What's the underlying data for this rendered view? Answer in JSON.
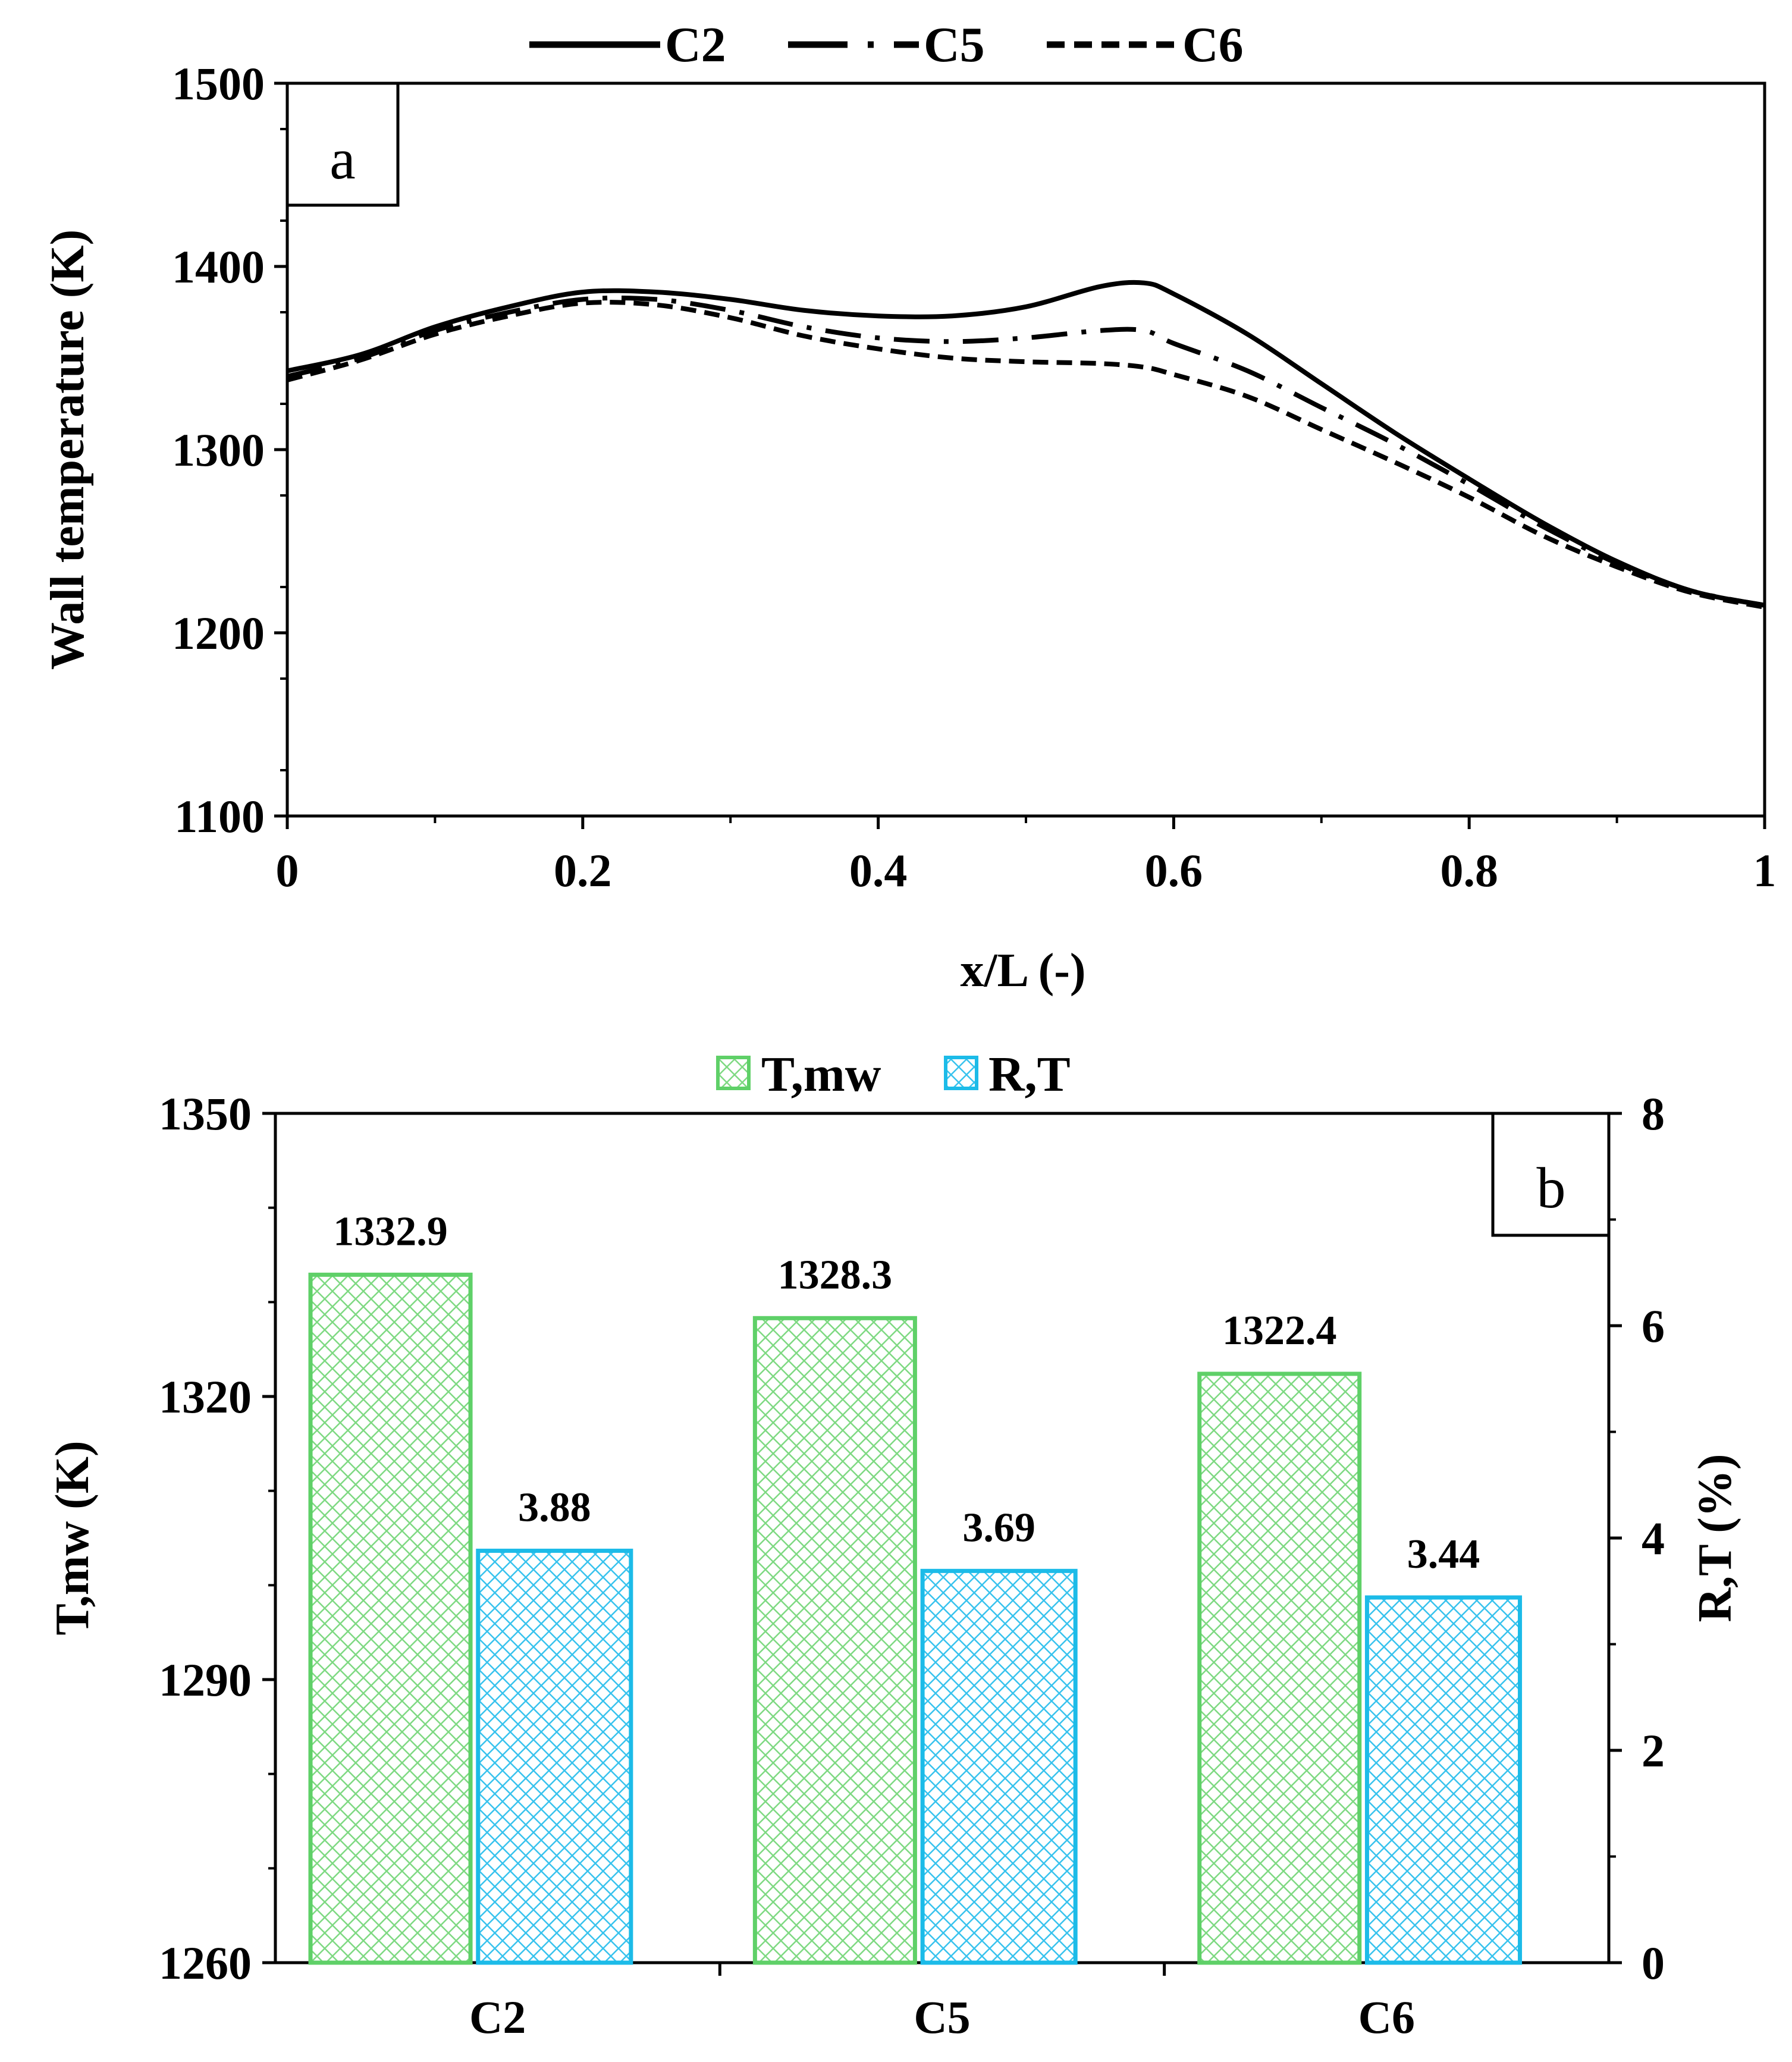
{
  "chart_data": [
    {
      "type": "line",
      "panel_label": "a",
      "xlabel": "x/L (-)",
      "ylabel": "Wall temperature (K)",
      "xlim": [
        0,
        1
      ],
      "ylim": [
        1100,
        1500
      ],
      "x_ticks": [
        "0",
        "0.2",
        "0.4",
        "0.6",
        "0.8",
        "1"
      ],
      "y_ticks": [
        "1100",
        "1200",
        "1300",
        "1400",
        "1500"
      ],
      "legend": [
        "C2",
        "C5",
        "C6"
      ],
      "series": [
        {
          "name": "C2",
          "style": "solid",
          "points": [
            [
              0,
              1343
            ],
            [
              0.05,
              1352
            ],
            [
              0.1,
              1367
            ],
            [
              0.15,
              1378
            ],
            [
              0.2,
              1386
            ],
            [
              0.25,
              1386
            ],
            [
              0.3,
              1382
            ],
            [
              0.35,
              1376
            ],
            [
              0.4,
              1373
            ],
            [
              0.45,
              1373
            ],
            [
              0.5,
              1378
            ],
            [
              0.55,
              1389
            ],
            [
              0.58,
              1391
            ],
            [
              0.6,
              1385
            ],
            [
              0.65,
              1363
            ],
            [
              0.7,
              1336
            ],
            [
              0.75,
              1309
            ],
            [
              0.8,
              1284
            ],
            [
              0.85,
              1260
            ],
            [
              0.9,
              1239
            ],
            [
              0.95,
              1223
            ],
            [
              1,
              1215
            ]
          ]
        },
        {
          "name": "C5",
          "style": "dash-dot",
          "points": [
            [
              0,
              1340
            ],
            [
              0.05,
              1350
            ],
            [
              0.1,
              1365
            ],
            [
              0.15,
              1375
            ],
            [
              0.2,
              1382
            ],
            [
              0.25,
              1382
            ],
            [
              0.3,
              1376
            ],
            [
              0.35,
              1367
            ],
            [
              0.4,
              1361
            ],
            [
              0.45,
              1359
            ],
            [
              0.5,
              1361
            ],
            [
              0.55,
              1365
            ],
            [
              0.58,
              1365
            ],
            [
              0.6,
              1358
            ],
            [
              0.65,
              1343
            ],
            [
              0.7,
              1323
            ],
            [
              0.75,
              1303
            ],
            [
              0.8,
              1281
            ],
            [
              0.85,
              1258
            ],
            [
              0.9,
              1238
            ],
            [
              0.95,
              1223
            ],
            [
              1,
              1215
            ]
          ]
        },
        {
          "name": "C6",
          "style": "dashed",
          "points": [
            [
              0,
              1338
            ],
            [
              0.05,
              1349
            ],
            [
              0.1,
              1363
            ],
            [
              0.15,
              1373
            ],
            [
              0.2,
              1380
            ],
            [
              0.25,
              1379
            ],
            [
              0.3,
              1372
            ],
            [
              0.35,
              1362
            ],
            [
              0.4,
              1355
            ],
            [
              0.45,
              1350
            ],
            [
              0.5,
              1348
            ],
            [
              0.55,
              1347
            ],
            [
              0.58,
              1345
            ],
            [
              0.6,
              1341
            ],
            [
              0.65,
              1329
            ],
            [
              0.7,
              1311
            ],
            [
              0.75,
              1293
            ],
            [
              0.8,
              1274
            ],
            [
              0.85,
              1253
            ],
            [
              0.9,
              1236
            ],
            [
              0.95,
              1222
            ],
            [
              1,
              1214
            ]
          ]
        }
      ]
    },
    {
      "type": "bar",
      "panel_label": "b",
      "categories": [
        "C2",
        "C5",
        "C6"
      ],
      "xlabel": "",
      "ylabel": "T,mw (K)",
      "y2label": "R,T (%)",
      "ylim": [
        1260,
        1350
      ],
      "y2lim": [
        0,
        8
      ],
      "y_ticks": [
        "1260",
        "1290",
        "1320",
        "1350"
      ],
      "y2_ticks": [
        "0",
        "2",
        "4",
        "6",
        "8"
      ],
      "series": [
        {
          "name": "T,mw",
          "axis": "left",
          "values": [
            1332.9,
            1328.3,
            1322.4
          ],
          "labels": [
            "1332.9",
            "1328.3",
            "1322.4"
          ],
          "color": "#5fd068"
        },
        {
          "name": "R,T",
          "axis": "right",
          "values": [
            3.88,
            3.69,
            3.44
          ],
          "labels": [
            "3.88",
            "3.69",
            "3.44"
          ],
          "color": "#1cbbe8"
        }
      ]
    }
  ]
}
